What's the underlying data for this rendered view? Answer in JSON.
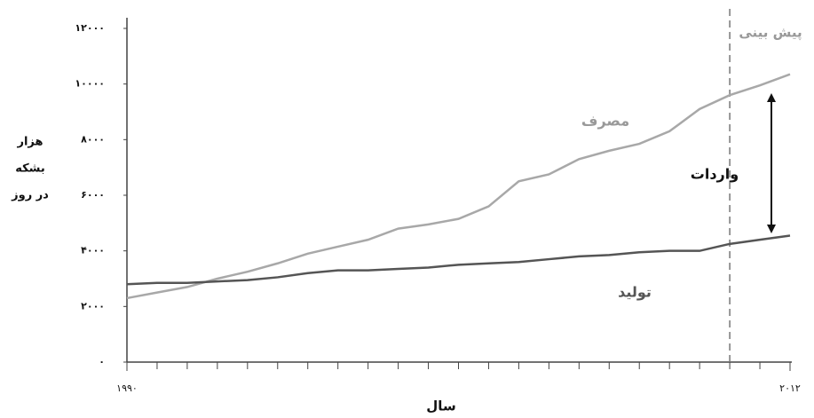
{
  "chart_data": {
    "type": "line",
    "ylabel": [
      "هزار",
      "بشکه",
      "در روز"
    ],
    "xlabel": "سال",
    "annotations": {
      "consumption": "مصرف",
      "production": "تولید",
      "imports": "واردات",
      "forecast": "پیش بینی"
    },
    "forecast_x": 2010,
    "x": [
      1990,
      1991,
      1992,
      1993,
      1994,
      1995,
      1996,
      1997,
      1998,
      1999,
      2000,
      2001,
      2002,
      2003,
      2004,
      2005,
      2006,
      2007,
      2008,
      2009,
      2010,
      2011,
      2012
    ],
    "series": [
      {
        "name": "مصرف",
        "color": "#a8a8a8",
        "values": [
          2300,
          2500,
          2700,
          3000,
          3250,
          3550,
          3900,
          4150,
          4400,
          4800,
          4950,
          5150,
          5600,
          6500,
          6750,
          7300,
          7600,
          7850,
          8300,
          9100,
          9600,
          9950,
          10350
        ]
      },
      {
        "name": "تولید",
        "color": "#555555",
        "values": [
          2800,
          2850,
          2850,
          2900,
          2950,
          3050,
          3200,
          3300,
          3300,
          3350,
          3400,
          3500,
          3550,
          3600,
          3700,
          3800,
          3850,
          3950,
          4000,
          4000,
          4250,
          4400,
          4550
        ]
      }
    ],
    "xlim": [
      1990,
      2012
    ],
    "xticks": [
      {
        "value": 1990,
        "label": "۱۹۹۰"
      },
      {
        "value": 2012,
        "label": "۲۰۱۲"
      }
    ],
    "ylim": [
      0,
      12000
    ],
    "yticks": [
      {
        "value": 0,
        "label": "۰"
      },
      {
        "value": 2000,
        "label": "۲۰۰۰"
      },
      {
        "value": 4000,
        "label": "۴۰۰۰"
      },
      {
        "value": 6000,
        "label": "۶۰۰۰"
      },
      {
        "value": 8000,
        "label": "۸۰۰۰"
      },
      {
        "value": 10000,
        "label": "۱۰۰۰۰"
      },
      {
        "value": 12000,
        "label": "۱۲۰۰۰"
      }
    ]
  }
}
